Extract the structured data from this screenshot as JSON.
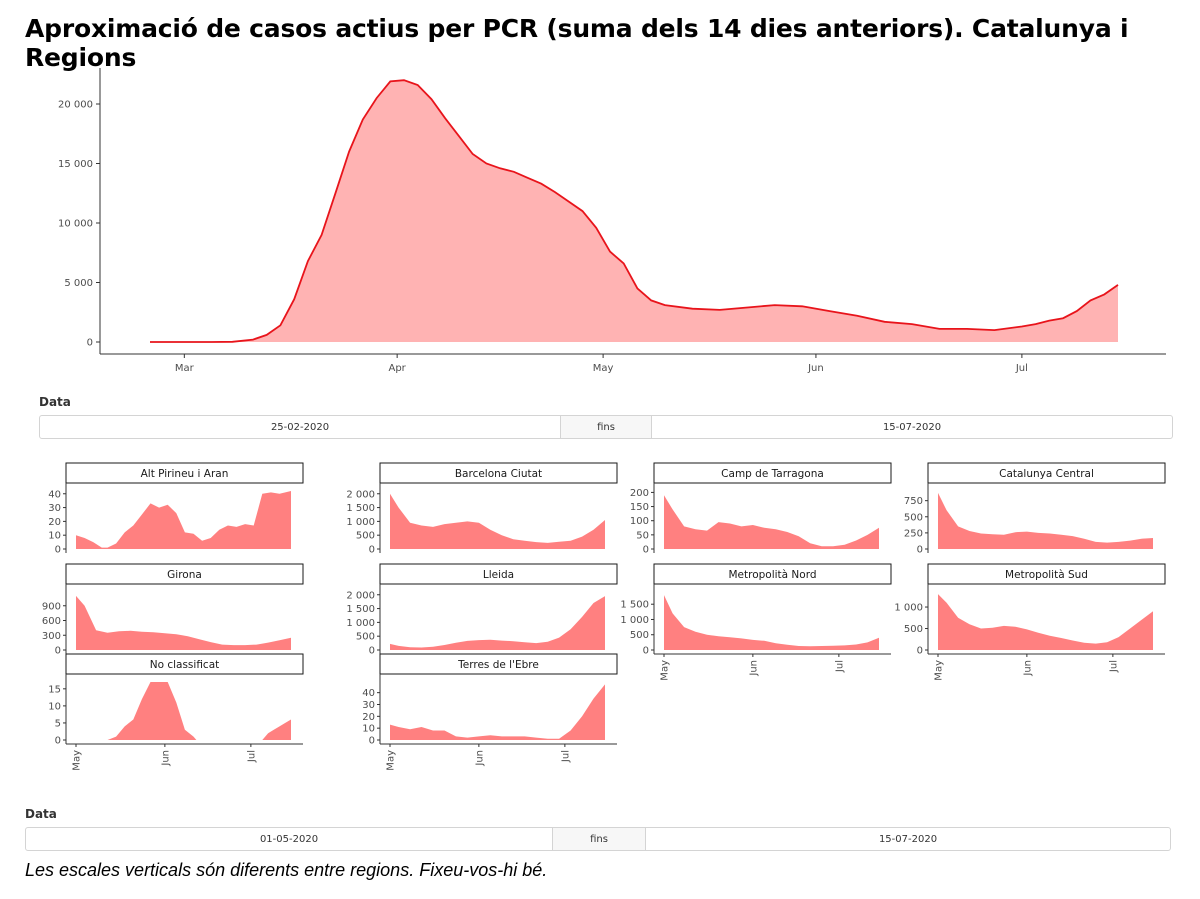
{
  "title": "Aproximació de casos actius per PCR (suma dels 14 dies anteriors). Catalunya i Regions",
  "footnote": "Les escales verticals són diferents entre regions. Fixeu-vos-hi bé.",
  "colors": {
    "line": "#e8141b",
    "area_main": "#ffb3b3",
    "area_facet": "#ff8080"
  },
  "range_main": {
    "label": "Data",
    "start": "25-02-2020",
    "separator": "fins",
    "end": "15-07-2020"
  },
  "range_facets": {
    "label": "Data",
    "start": "01-05-2020",
    "separator": "fins",
    "end": "15-07-2020"
  },
  "chart_data": [
    {
      "type": "area",
      "xlabel": "",
      "ylabel": "",
      "x_range": [
        "2020-02-25",
        "2020-07-15"
      ],
      "x_tick_labels": [
        "Mar",
        "Apr",
        "May",
        "Jun",
        "Jul"
      ],
      "x_tick_dates": [
        "2020-03-01",
        "2020-04-01",
        "2020-05-01",
        "2020-06-01",
        "2020-07-01"
      ],
      "y_ticks": [
        0,
        5000,
        10000,
        15000,
        20000
      ],
      "y_tick_labels": [
        "0",
        "5 000",
        "10 000",
        "15 000",
        "20 000"
      ],
      "ylim": [
        0,
        23000
      ],
      "x": [
        "2020-02-25",
        "2020-03-01",
        "2020-03-05",
        "2020-03-08",
        "2020-03-11",
        "2020-03-13",
        "2020-03-15",
        "2020-03-17",
        "2020-03-19",
        "2020-03-21",
        "2020-03-23",
        "2020-03-25",
        "2020-03-27",
        "2020-03-29",
        "2020-03-31",
        "2020-04-02",
        "2020-04-04",
        "2020-04-06",
        "2020-04-08",
        "2020-04-10",
        "2020-04-12",
        "2020-04-14",
        "2020-04-16",
        "2020-04-18",
        "2020-04-20",
        "2020-04-22",
        "2020-04-24",
        "2020-04-26",
        "2020-04-28",
        "2020-04-30",
        "2020-05-02",
        "2020-05-04",
        "2020-05-06",
        "2020-05-08",
        "2020-05-10",
        "2020-05-14",
        "2020-05-18",
        "2020-05-22",
        "2020-05-26",
        "2020-05-30",
        "2020-06-03",
        "2020-06-07",
        "2020-06-11",
        "2020-06-15",
        "2020-06-19",
        "2020-06-23",
        "2020-06-27",
        "2020-07-01",
        "2020-07-03",
        "2020-07-05",
        "2020-07-07",
        "2020-07-09",
        "2020-07-11",
        "2020-07-13",
        "2020-07-15"
      ],
      "y": [
        0,
        0,
        0,
        20,
        200,
        600,
        1400,
        3600,
        6800,
        9000,
        12500,
        16000,
        18700,
        20500,
        21900,
        22000,
        21600,
        20400,
        18800,
        17300,
        15800,
        15000,
        14600,
        14300,
        13800,
        13300,
        12600,
        11800,
        11000,
        9600,
        7600,
        6600,
        4500,
        3500,
        3100,
        2800,
        2700,
        2900,
        3100,
        3000,
        2600,
        2200,
        1700,
        1500,
        1100,
        1100,
        1000,
        1300,
        1500,
        1800,
        2000,
        2600,
        3500,
        4000,
        4800
      ]
    },
    {
      "type": "area",
      "x_tick_labels": [
        "May",
        "Jun",
        "Jul"
      ],
      "x_tick_dates": [
        "2020-05-01",
        "2020-06-01",
        "2020-07-01"
      ],
      "x_range": [
        "2020-05-01",
        "2020-07-15"
      ],
      "facets": [
        {
          "name": "Alt Pirineu i Aran",
          "ylim": [
            0,
            42
          ],
          "y_ticks": [
            0,
            10,
            20,
            30,
            40
          ],
          "y_tick_labels": [
            "0",
            "10",
            "20",
            "30",
            "40"
          ],
          "x": [
            "2020-05-01",
            "2020-05-04",
            "2020-05-07",
            "2020-05-10",
            "2020-05-12",
            "2020-05-15",
            "2020-05-18",
            "2020-05-21",
            "2020-05-24",
            "2020-05-27",
            "2020-05-30",
            "2020-06-02",
            "2020-06-05",
            "2020-06-08",
            "2020-06-11",
            "2020-06-14",
            "2020-06-17",
            "2020-06-20",
            "2020-06-23",
            "2020-06-26",
            "2020-06-29",
            "2020-07-02",
            "2020-07-05",
            "2020-07-08",
            "2020-07-11",
            "2020-07-15"
          ],
          "y": [
            10,
            8,
            5,
            1,
            1,
            4,
            12,
            17,
            25,
            33,
            30,
            32,
            26,
            12,
            11,
            6,
            8,
            14,
            17,
            16,
            18,
            17,
            40,
            41,
            40,
            42
          ]
        },
        {
          "name": "Barcelona Ciutat",
          "ylim": [
            0,
            2100
          ],
          "y_ticks": [
            0,
            500,
            1000,
            1500,
            2000
          ],
          "y_tick_labels": [
            "0",
            "500",
            "1 000",
            "1 500",
            "2 000"
          ],
          "x": [
            "2020-05-01",
            "2020-05-04",
            "2020-05-08",
            "2020-05-12",
            "2020-05-16",
            "2020-05-20",
            "2020-05-24",
            "2020-05-28",
            "2020-06-01",
            "2020-06-05",
            "2020-06-09",
            "2020-06-13",
            "2020-06-17",
            "2020-06-21",
            "2020-06-25",
            "2020-06-29",
            "2020-07-03",
            "2020-07-07",
            "2020-07-11",
            "2020-07-15"
          ],
          "y": [
            2000,
            1500,
            950,
            850,
            800,
            900,
            950,
            1000,
            950,
            700,
            500,
            350,
            300,
            250,
            220,
            260,
            300,
            450,
            700,
            1050
          ]
        },
        {
          "name": "Camp de Tarragona",
          "ylim": [
            0,
            205
          ],
          "y_ticks": [
            0,
            50,
            100,
            150,
            200
          ],
          "y_tick_labels": [
            "0",
            "50",
            "100",
            "150",
            "200"
          ],
          "x": [
            "2020-05-01",
            "2020-05-04",
            "2020-05-08",
            "2020-05-12",
            "2020-05-16",
            "2020-05-20",
            "2020-05-24",
            "2020-05-28",
            "2020-06-01",
            "2020-06-05",
            "2020-06-09",
            "2020-06-13",
            "2020-06-17",
            "2020-06-21",
            "2020-06-25",
            "2020-06-29",
            "2020-07-03",
            "2020-07-07",
            "2020-07-11",
            "2020-07-15"
          ],
          "y": [
            190,
            140,
            80,
            70,
            65,
            95,
            90,
            80,
            85,
            75,
            70,
            60,
            45,
            20,
            10,
            10,
            15,
            30,
            50,
            75
          ]
        },
        {
          "name": "Catalunya Central",
          "ylim": [
            0,
            900
          ],
          "y_ticks": [
            0,
            250,
            500,
            750
          ],
          "y_tick_labels": [
            "0",
            "250",
            "500",
            "750"
          ],
          "x": [
            "2020-05-01",
            "2020-05-04",
            "2020-05-08",
            "2020-05-12",
            "2020-05-16",
            "2020-05-20",
            "2020-05-24",
            "2020-05-28",
            "2020-06-01",
            "2020-06-05",
            "2020-06-09",
            "2020-06-13",
            "2020-06-17",
            "2020-06-21",
            "2020-06-25",
            "2020-06-29",
            "2020-07-03",
            "2020-07-07",
            "2020-07-11",
            "2020-07-15"
          ],
          "y": [
            870,
            600,
            350,
            280,
            240,
            230,
            220,
            260,
            270,
            250,
            240,
            220,
            200,
            160,
            110,
            100,
            110,
            130,
            160,
            170
          ]
        },
        {
          "name": "Girona",
          "ylim": [
            0,
            1180
          ],
          "y_ticks": [
            0,
            300,
            600,
            900
          ],
          "y_tick_labels": [
            "0",
            "300",
            "600",
            "900"
          ],
          "x": [
            "2020-05-01",
            "2020-05-04",
            "2020-05-08",
            "2020-05-12",
            "2020-05-16",
            "2020-05-20",
            "2020-05-24",
            "2020-05-28",
            "2020-06-01",
            "2020-06-05",
            "2020-06-09",
            "2020-06-13",
            "2020-06-17",
            "2020-06-21",
            "2020-06-25",
            "2020-06-29",
            "2020-07-03",
            "2020-07-07",
            "2020-07-11",
            "2020-07-15"
          ],
          "y": [
            1100,
            900,
            400,
            350,
            380,
            390,
            370,
            360,
            340,
            320,
            280,
            220,
            160,
            110,
            100,
            100,
            110,
            150,
            200,
            250
          ]
        },
        {
          "name": "Lleida",
          "ylim": [
            0,
            2100
          ],
          "y_ticks": [
            0,
            500,
            1000,
            1500,
            2000
          ],
          "y_tick_labels": [
            "0",
            "500",
            "1 000",
            "1 500",
            "2 000"
          ],
          "x": [
            "2020-05-01",
            "2020-05-04",
            "2020-05-08",
            "2020-05-12",
            "2020-05-16",
            "2020-05-20",
            "2020-05-24",
            "2020-05-28",
            "2020-06-01",
            "2020-06-05",
            "2020-06-09",
            "2020-06-13",
            "2020-06-17",
            "2020-06-21",
            "2020-06-25",
            "2020-06-29",
            "2020-07-03",
            "2020-07-07",
            "2020-07-11",
            "2020-07-15"
          ],
          "y": [
            220,
            150,
            100,
            90,
            120,
            180,
            260,
            330,
            360,
            370,
            340,
            320,
            280,
            250,
            300,
            450,
            750,
            1200,
            1700,
            1950
          ]
        },
        {
          "name": "Metropolità Nord",
          "ylim": [
            0,
            1900
          ],
          "y_ticks": [
            0,
            500,
            1000,
            1500
          ],
          "y_tick_labels": [
            "0",
            "500",
            "1 000",
            "1 500"
          ],
          "x": [
            "2020-05-01",
            "2020-05-04",
            "2020-05-08",
            "2020-05-12",
            "2020-05-16",
            "2020-05-20",
            "2020-05-24",
            "2020-05-28",
            "2020-06-01",
            "2020-06-05",
            "2020-06-09",
            "2020-06-13",
            "2020-06-17",
            "2020-06-21",
            "2020-06-25",
            "2020-06-29",
            "2020-07-03",
            "2020-07-07",
            "2020-07-11",
            "2020-07-15"
          ],
          "y": [
            1800,
            1200,
            750,
            600,
            500,
            450,
            420,
            380,
            330,
            300,
            220,
            170,
            130,
            120,
            130,
            140,
            150,
            180,
            250,
            400
          ]
        },
        {
          "name": "Metropolità Sud",
          "ylim": [
            0,
            1350
          ],
          "y_ticks": [
            0,
            500,
            1000
          ],
          "y_tick_labels": [
            "0",
            "500",
            "1 000"
          ],
          "x": [
            "2020-05-01",
            "2020-05-04",
            "2020-05-08",
            "2020-05-12",
            "2020-05-16",
            "2020-05-20",
            "2020-05-24",
            "2020-05-28",
            "2020-06-01",
            "2020-06-05",
            "2020-06-09",
            "2020-06-13",
            "2020-06-17",
            "2020-06-21",
            "2020-06-25",
            "2020-06-29",
            "2020-07-03",
            "2020-07-07",
            "2020-07-11",
            "2020-07-15"
          ],
          "y": [
            1300,
            1100,
            750,
            600,
            500,
            520,
            560,
            540,
            480,
            400,
            330,
            280,
            220,
            170,
            150,
            180,
            300,
            500,
            700,
            900
          ]
        },
        {
          "name": "No classificat",
          "ylim": [
            0,
            17
          ],
          "y_ticks": [
            0,
            5,
            10,
            15
          ],
          "y_tick_labels": [
            "0",
            "5",
            "10",
            "15"
          ],
          "x": [
            "2020-05-01",
            "2020-05-12",
            "2020-05-15",
            "2020-05-18",
            "2020-05-21",
            "2020-05-24",
            "2020-05-27",
            "2020-05-30",
            "2020-06-02",
            "2020-06-05",
            "2020-06-08",
            "2020-06-11",
            "2020-06-12",
            "2020-07-05",
            "2020-07-07",
            "2020-07-09",
            "2020-07-11",
            "2020-07-13",
            "2020-07-15"
          ],
          "y": [
            0,
            0,
            1,
            4,
            6,
            12,
            17,
            17,
            17,
            11,
            3,
            1,
            0,
            0,
            2,
            3,
            4,
            5,
            6
          ]
        },
        {
          "name": "Terres de l'Ebre",
          "ylim": [
            0,
            49
          ],
          "y_ticks": [
            0,
            10,
            20,
            30,
            40
          ],
          "y_tick_labels": [
            "0",
            "10",
            "20",
            "30",
            "40"
          ],
          "x": [
            "2020-05-01",
            "2020-05-04",
            "2020-05-08",
            "2020-05-12",
            "2020-05-16",
            "2020-05-20",
            "2020-05-24",
            "2020-05-28",
            "2020-06-01",
            "2020-06-05",
            "2020-06-09",
            "2020-06-13",
            "2020-06-17",
            "2020-06-21",
            "2020-06-25",
            "2020-06-29",
            "2020-07-03",
            "2020-07-07",
            "2020-07-11",
            "2020-07-15"
          ],
          "y": [
            13,
            11,
            9,
            11,
            8,
            8,
            3,
            2,
            3,
            4,
            3,
            3,
            3,
            2,
            1,
            1,
            8,
            20,
            35,
            47
          ]
        }
      ]
    }
  ]
}
